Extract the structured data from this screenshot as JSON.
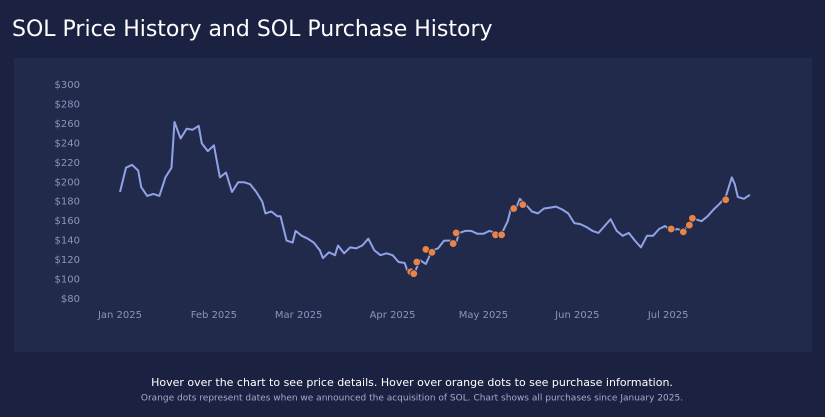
{
  "chart_data": {
    "type": "line",
    "title": "SOL Price History and SOL Purchase History",
    "notes": [
      "Hover over the chart to see price details. Hover over orange dots to see purchase information.",
      "Orange dots represent dates when we announced the acquisition of SOL. Chart shows all purchases since January 2025."
    ],
    "xlim": [
      -10,
      210
    ],
    "xticks": [
      {
        "value": 0,
        "label": "Jan 2025"
      },
      {
        "value": 31,
        "label": "Feb 2025"
      },
      {
        "value": 59,
        "label": "Mar 2025"
      },
      {
        "value": 90,
        "label": "Apr 2025"
      },
      {
        "value": 120,
        "label": "May 2025"
      },
      {
        "value": 151,
        "label": "Jun 2025"
      },
      {
        "value": 181,
        "label": "Jul 2025"
      }
    ],
    "ylim": [
      80,
      300
    ],
    "yticks": [
      {
        "value": 80,
        "label": "$80"
      },
      {
        "value": 100,
        "label": "$100"
      },
      {
        "value": 120,
        "label": "$120"
      },
      {
        "value": 140,
        "label": "$140"
      },
      {
        "value": 160,
        "label": "$160"
      },
      {
        "value": 180,
        "label": "$180"
      },
      {
        "value": 200,
        "label": "$200"
      },
      {
        "value": 220,
        "label": "$220"
      },
      {
        "value": 240,
        "label": "$240"
      },
      {
        "value": 260,
        "label": "$260"
      },
      {
        "value": 280,
        "label": "$280"
      },
      {
        "value": 300,
        "label": "$300"
      }
    ],
    "grid": false,
    "series": [
      {
        "type": "line",
        "color": "#8fa3e6",
        "x": [
          0,
          2,
          4,
          6,
          7,
          9,
          11,
          13,
          15,
          17,
          18,
          20,
          22,
          24,
          26,
          27,
          29,
          31,
          33,
          35,
          37,
          39,
          41,
          43,
          45,
          47,
          48,
          50,
          52,
          53,
          55,
          57,
          58,
          60,
          62,
          64,
          66,
          67,
          69,
          71,
          72,
          74,
          76,
          78,
          80,
          82,
          84,
          86,
          88,
          90,
          92,
          94,
          95,
          96,
          97,
          99,
          101,
          103,
          105,
          107,
          109,
          111,
          112,
          114,
          116,
          118,
          120,
          122,
          124,
          126,
          128,
          129,
          131,
          132,
          134,
          136,
          138,
          140,
          142,
          144,
          146,
          148,
          150,
          152,
          154,
          156,
          158,
          160,
          162,
          164,
          166,
          168,
          170,
          172,
          174,
          176,
          178,
          180,
          182,
          184,
          186,
          188,
          190,
          192,
          194,
          196,
          198,
          200,
          202,
          203,
          204,
          206,
          208
        ],
        "values": [
          190,
          215,
          218,
          212,
          195,
          186,
          188,
          186,
          205,
          215,
          262,
          245,
          255,
          254,
          258,
          240,
          232,
          238,
          205,
          210,
          190,
          200,
          200,
          198,
          190,
          180,
          168,
          170,
          165,
          165,
          140,
          138,
          150,
          145,
          142,
          138,
          130,
          122,
          128,
          125,
          135,
          127,
          133,
          132,
          135,
          142,
          130,
          125,
          127,
          125,
          118,
          117,
          108,
          106,
          105,
          120,
          116,
          130,
          132,
          140,
          140,
          138,
          148,
          150,
          150,
          147,
          147,
          150,
          148,
          147,
          160,
          172,
          175,
          183,
          177,
          170,
          168,
          173,
          174,
          175,
          172,
          168,
          158,
          157,
          154,
          150,
          148,
          155,
          162,
          150,
          145,
          148,
          140,
          133,
          145,
          145,
          152,
          155,
          150,
          152,
          150,
          157,
          162,
          160,
          165,
          172,
          178,
          185,
          205,
          198,
          185,
          183,
          187
        ]
      },
      {
        "type": "scatter",
        "color": "#ea8446",
        "x": [
          96,
          97,
          98,
          101,
          103,
          110,
          111,
          124,
          126,
          130,
          133,
          182,
          186,
          188,
          189,
          200
        ],
        "values": [
          108,
          106,
          118,
          131,
          128,
          137,
          148,
          146,
          146,
          173,
          177,
          152,
          149,
          156,
          163,
          182
        ]
      }
    ]
  }
}
